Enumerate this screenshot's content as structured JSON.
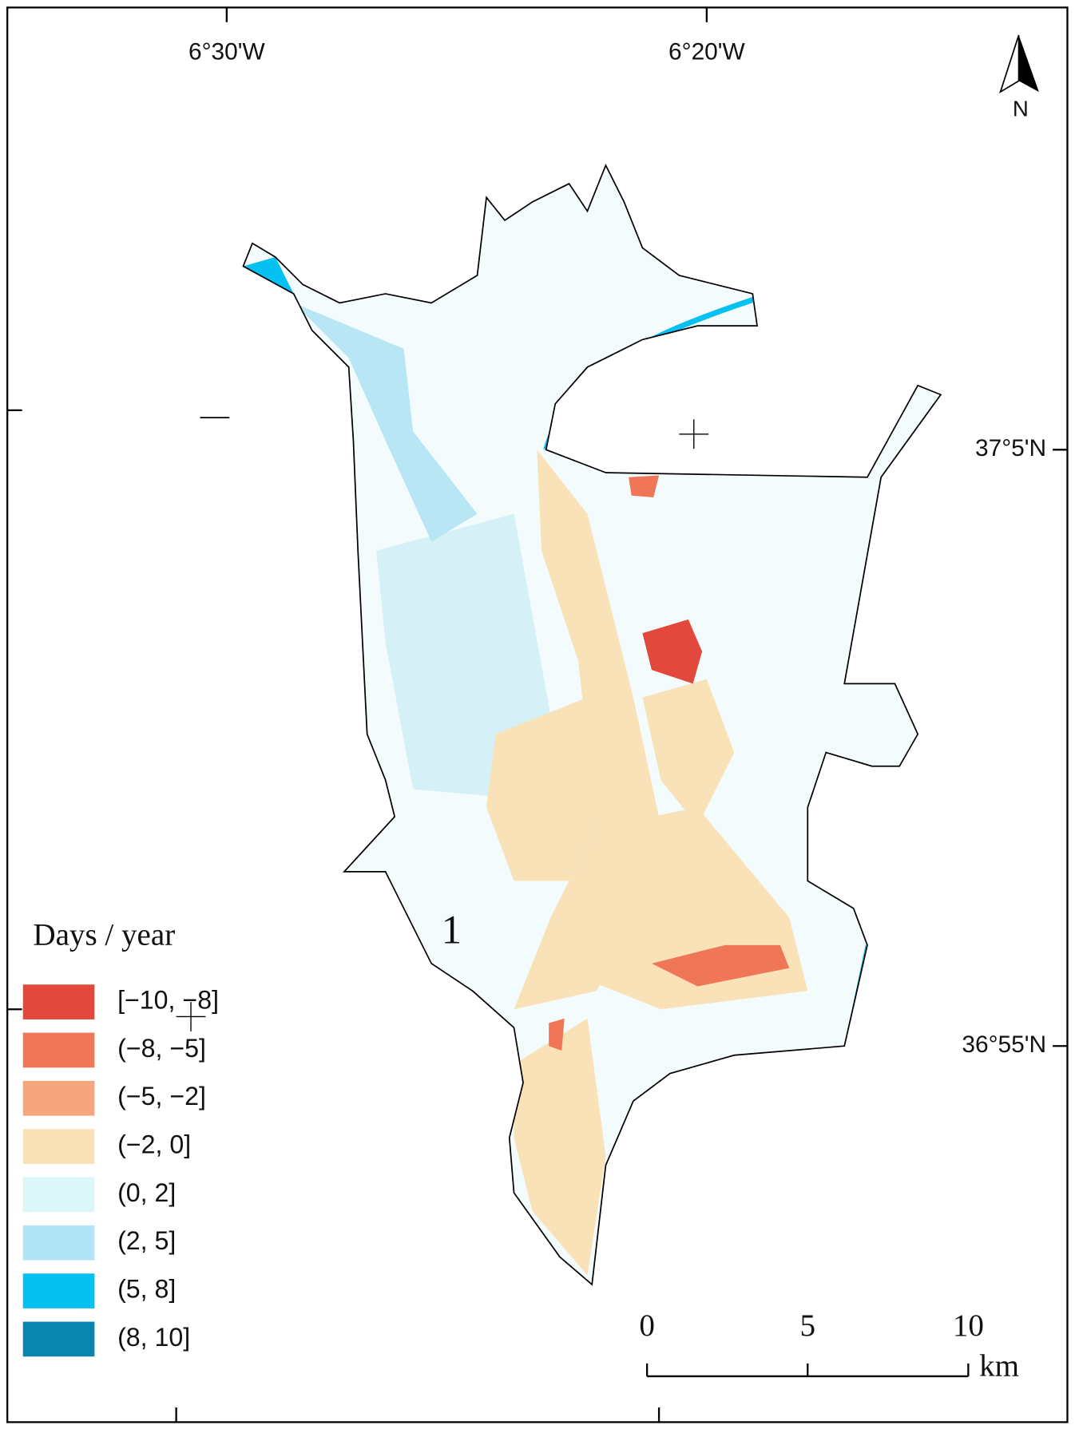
{
  "map": {
    "longitude_labels": [
      "6°30'W",
      "6°20'W"
    ],
    "latitude_labels": [
      "37°5'N",
      "36°55'N"
    ],
    "north_label": "N",
    "region_label": "1",
    "legend": {
      "title": "Days / year",
      "items": [
        {
          "label": "[−10, −8]",
          "color": "#e2483b"
        },
        {
          "label": "(−8, −5]",
          "color": "#ef7656"
        },
        {
          "label": "(−5, −2]",
          "color": "#f6a67c"
        },
        {
          "label": "(−2, 0]",
          "color": "#fae2b8"
        },
        {
          "label": "(0, 2]",
          "color": "#dbf7f8"
        },
        {
          "label": "(2, 5]",
          "color": "#b0e4f6"
        },
        {
          "label": "(5, 8]",
          "color": "#04c1f2"
        },
        {
          "label": "(8, 10]",
          "color": "#0a86ae"
        }
      ]
    },
    "scale_bar": {
      "ticks": [
        0,
        5,
        10
      ],
      "unit": "km"
    }
  }
}
